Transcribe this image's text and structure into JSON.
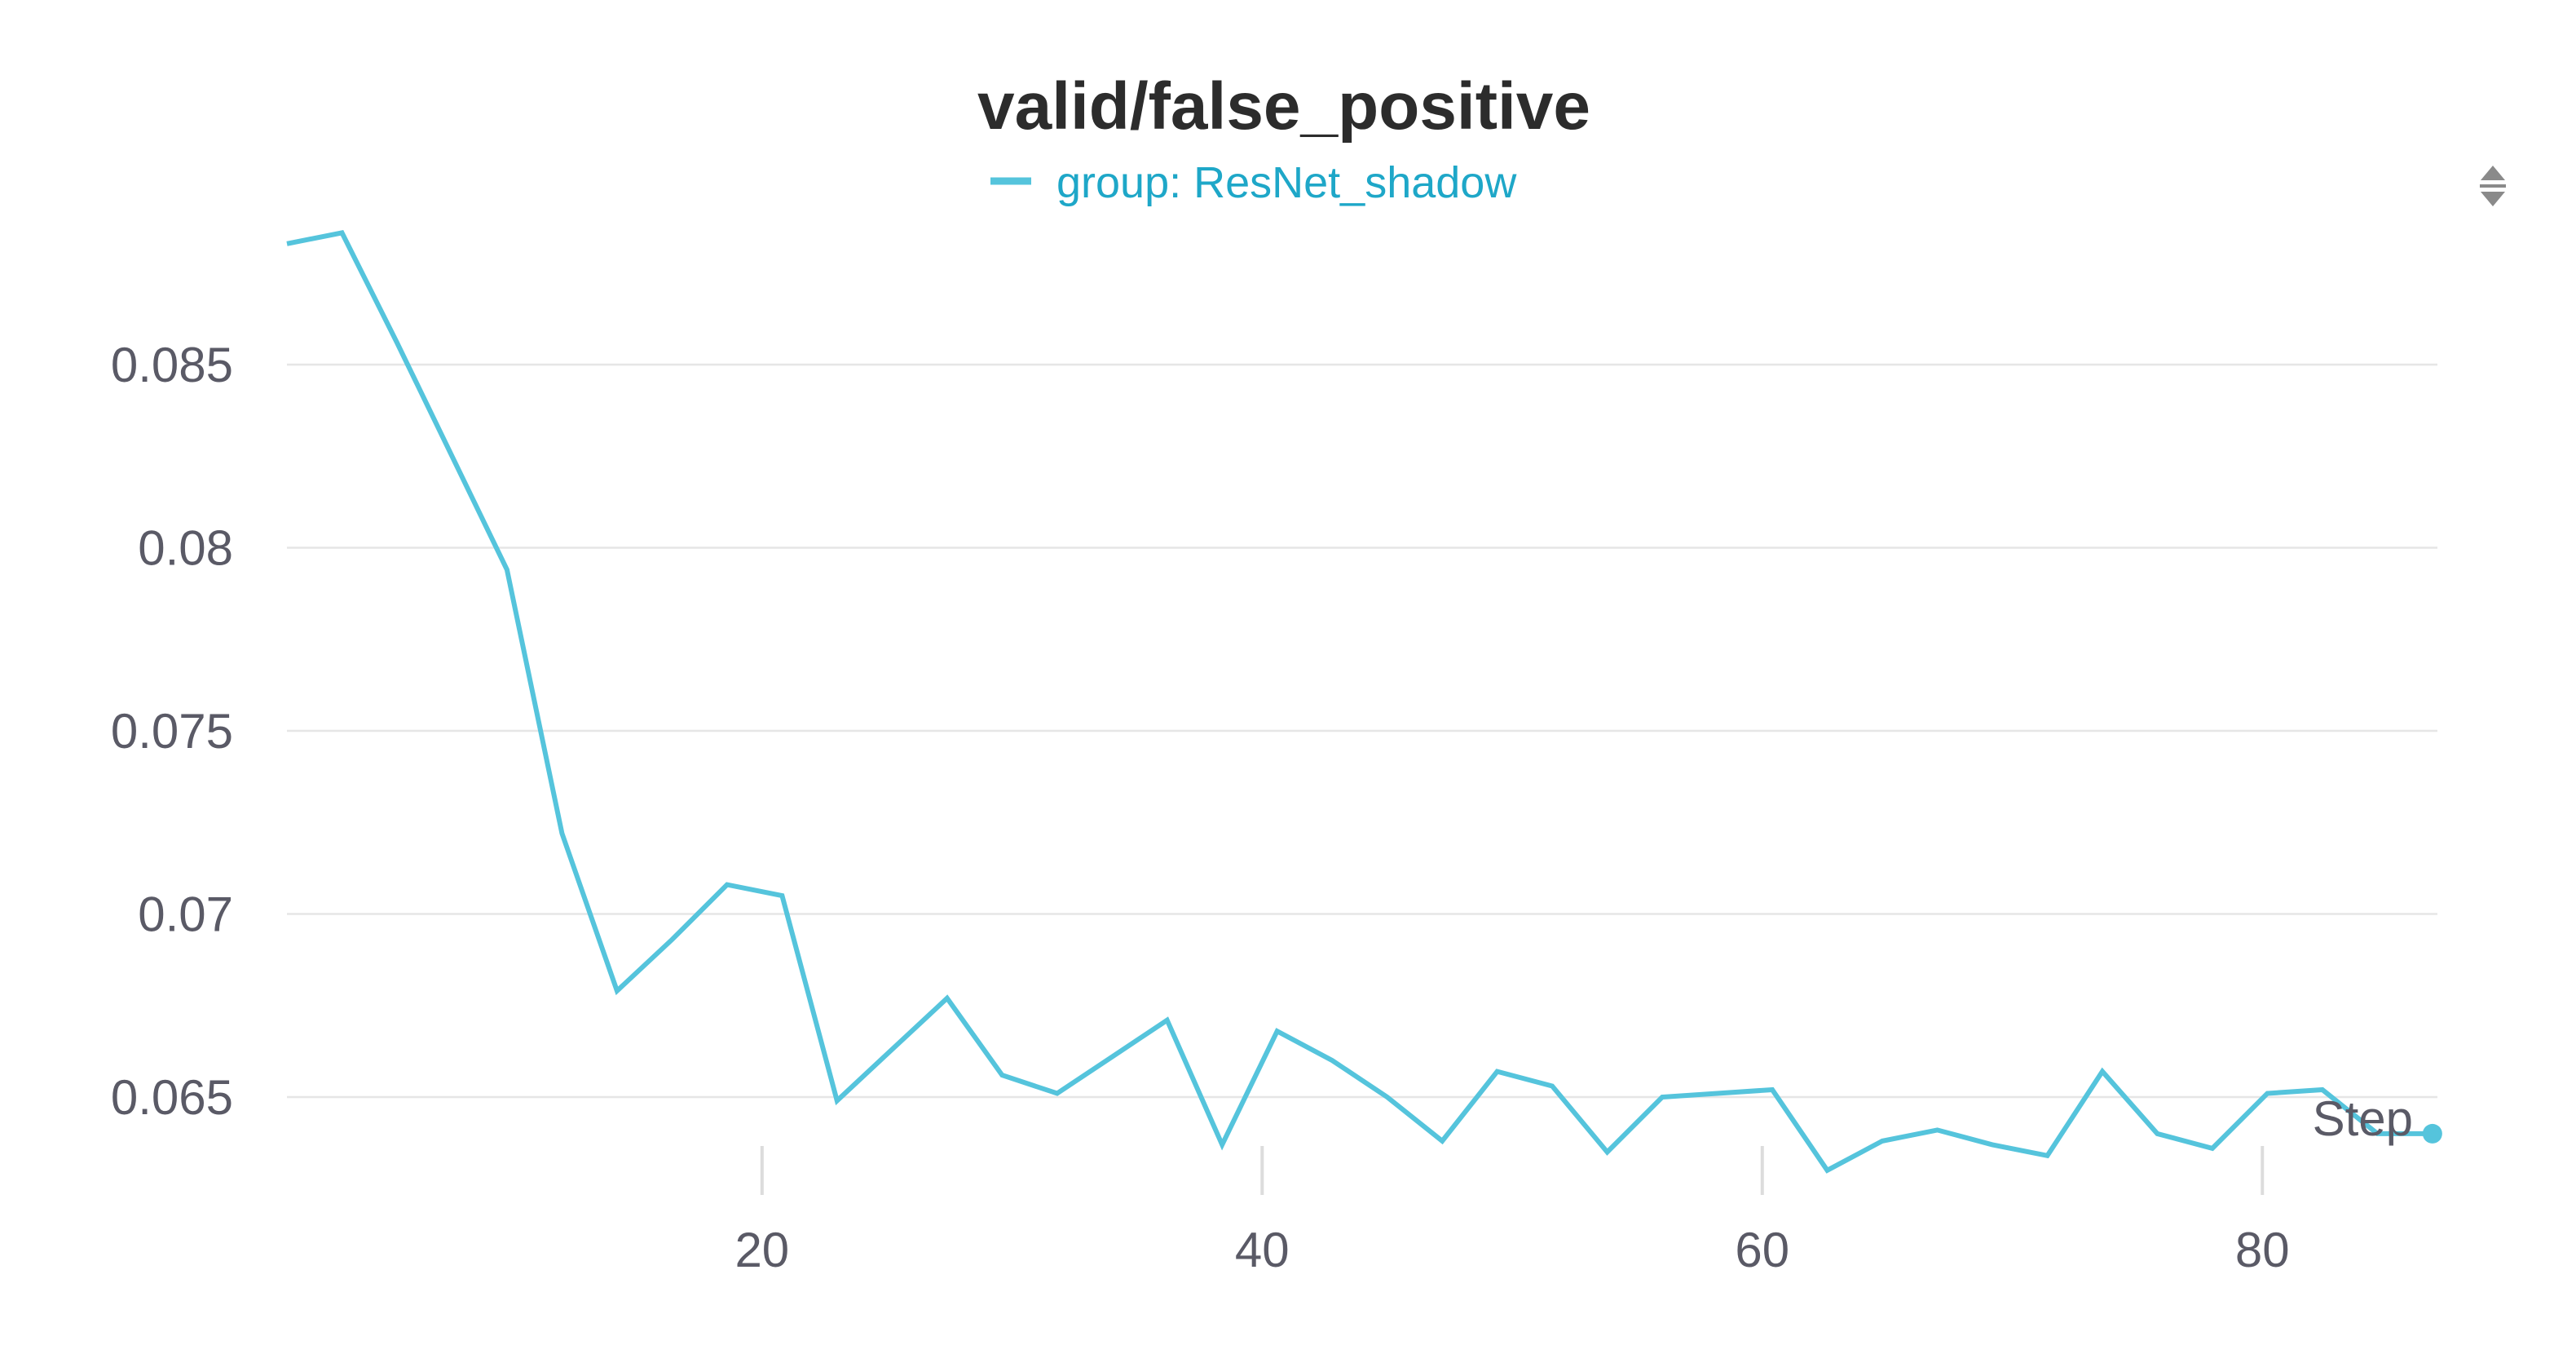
{
  "chart_data": {
    "type": "line",
    "title": "valid/false_positive",
    "xlabel": "Step",
    "ylabel": "",
    "xlim": [
      1,
      87
    ],
    "ylim": [
      0.0615,
      0.0885
    ],
    "yticks": [
      0.065,
      0.07,
      0.075,
      0.08,
      0.085
    ],
    "ytick_labels": [
      "0.065",
      "0.07",
      "0.075",
      "0.08",
      "0.085"
    ],
    "xticks": [
      20,
      40,
      60,
      80
    ],
    "xtick_labels": [
      "20",
      "40",
      "60",
      "80"
    ],
    "grid": true,
    "legend_position": "top-center",
    "series": [
      {
        "name": "group: ResNet_shadow",
        "color": "#55c4dc",
        "x": [
          1,
          3.2,
          5.4,
          7.6,
          9.8,
          12,
          14.2,
          16.4,
          18.6,
          20.8,
          23,
          25.2,
          27.4,
          29.6,
          31.8,
          34,
          36.2,
          38.4,
          40.6,
          42.8,
          45,
          47.2,
          49.4,
          51.6,
          53.8,
          56,
          58.2,
          60.4,
          62.6,
          64.8,
          67,
          69.2,
          71.4,
          73.6,
          75.8,
          78,
          80.2,
          82.4,
          84.6,
          86.8
        ],
        "values": [
          0.0883,
          0.0886,
          0.0856,
          0.0825,
          0.0794,
          0.0722,
          0.0679,
          0.0693,
          0.0708,
          0.0705,
          0.0649,
          0.0663,
          0.0677,
          0.0656,
          0.0651,
          0.0661,
          0.0671,
          0.0637,
          0.0668,
          0.066,
          0.065,
          0.0638,
          0.0657,
          0.0653,
          0.0635,
          0.065,
          0.0651,
          0.0652,
          0.063,
          0.0638,
          0.0641,
          0.0637,
          0.0634,
          0.0657,
          0.064,
          0.0636,
          0.0651,
          0.0652,
          0.064,
          0.064
        ]
      }
    ]
  },
  "icons": {
    "sort_control": "sort-up-down-icon"
  }
}
